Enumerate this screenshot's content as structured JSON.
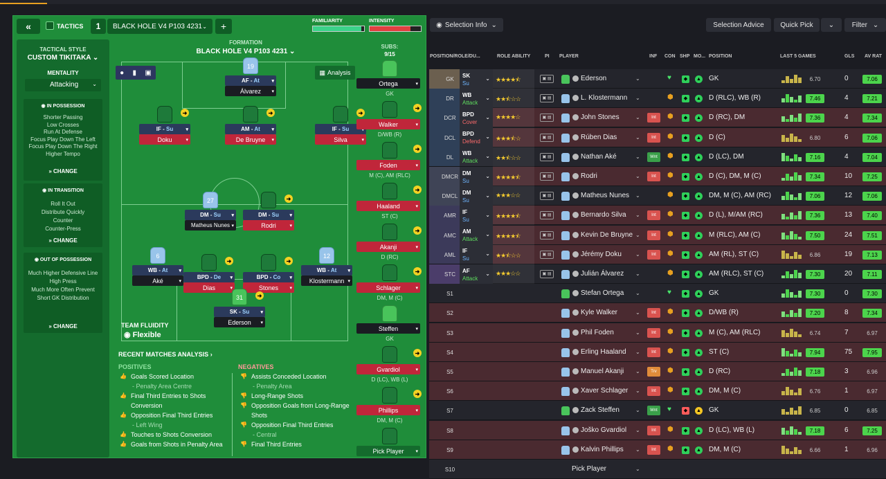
{
  "header": {
    "back_label": "«",
    "tactics_label": "TACTICS",
    "slot": "1",
    "tactic_name": "BLACK HOLE  V4 P103 4231",
    "add_label": "+",
    "familiarity_label": "FAMILIARITY",
    "intensity_label": "INTENSITY",
    "familiarity_level": 0.95,
    "intensity_level": 0.8
  },
  "style_panel": {
    "title": "TACTICAL STYLE",
    "name": "CUSTOM TIKITAKA",
    "mentality_label": "MENTALITY",
    "mentality_value": "Attacking",
    "possession": {
      "title": "IN POSSESSION",
      "items": [
        "Shorter Passing",
        "Low Crosses",
        "Run At Defense",
        "Focus Play Down The Left",
        "Focus Play Down The Right",
        "Higher Tempo"
      ],
      "change": "CHANGE"
    },
    "transition": {
      "title": "IN TRANSITION",
      "items": [
        "Roll It Out",
        "Distribute Quickly",
        "Counter",
        "Counter-Press"
      ],
      "change": "CHANGE"
    },
    "oop": {
      "title": "OUT OF POSSESSION",
      "items": [
        "Much Higher Defensive Line",
        "High Press",
        "Much More Often Prevent Short GK Distribution"
      ],
      "change": "CHANGE"
    },
    "fluidity_label": "TEAM FLUIDITY",
    "fluidity_value": "Flexible"
  },
  "pitch": {
    "formation_label": "FORMATION",
    "formation_name": "BLACK HOLE  V4 P103 4231",
    "analysis_label": "Analysis",
    "players": [
      {
        "role": "AF",
        "duty": "At",
        "name": "Álvarez",
        "num": "19",
        "shirt": "sky"
      },
      {
        "role": "IF",
        "duty": "Su",
        "name": "Doku",
        "shirt": "green"
      },
      {
        "role": "AM",
        "duty": "At",
        "name": "De Bruyne",
        "shirt": "green"
      },
      {
        "role": "IF",
        "duty": "Su",
        "name": "Silva",
        "shirt": "green"
      },
      {
        "role": "DM",
        "duty": "Su",
        "name": "Matheus Nunes",
        "num": "27",
        "shirt": "sky"
      },
      {
        "role": "DM",
        "duty": "Su",
        "name": "Rodri",
        "shirt": "green"
      },
      {
        "role": "WB",
        "duty": "At",
        "name": "Aké",
        "num": "6",
        "shirt": "sky"
      },
      {
        "role": "BPD",
        "duty": "De",
        "name": "Dias",
        "shirt": "green"
      },
      {
        "role": "BPD",
        "duty": "Co",
        "name": "Stones",
        "shirt": "green"
      },
      {
        "role": "WB",
        "duty": "At",
        "name": "Klostermann",
        "num": "12",
        "shirt": "sky"
      },
      {
        "role": "SK",
        "duty": "Su",
        "name": "Ederson",
        "num": "31",
        "shirt": "gk"
      }
    ]
  },
  "subs": {
    "label": "SUBS:",
    "count": "9/15",
    "items": [
      {
        "name": "Ortega",
        "pos": "GK"
      },
      {
        "name": "Walker",
        "pos": "D/WB (R)"
      },
      {
        "name": "Foden",
        "pos": "M (C), AM (RLC)"
      },
      {
        "name": "Haaland",
        "pos": "ST (C)"
      },
      {
        "name": "Akanji",
        "pos": "D (RC)"
      },
      {
        "name": "Schlager",
        "pos": "DM, M (C)"
      },
      {
        "name": "Steffen",
        "pos": "GK"
      },
      {
        "name": "Gvardiol",
        "pos": "D (LC), WB (L)"
      },
      {
        "name": "Phillips",
        "pos": "DM, M (C)"
      },
      {
        "name": "Pick Player",
        "pos": ""
      }
    ]
  },
  "analysis": {
    "title": "RECENT MATCHES ANALYSIS",
    "positives_label": "POSITIVES",
    "negatives_label": "NEGATIVES",
    "positives": [
      "Goals Scored Location",
      "- Penalty Area Centre",
      "Final Third Entries to Shots Conversion",
      "Opposition Final Third Entries",
      "- Left Wing",
      "Touches to Shots Conversion",
      "Goals from Shots in Penalty Area"
    ],
    "negatives": [
      "Assists Conceded Location",
      "- Penalty Area",
      "Long-Range Shots",
      "Opposition Goals from Long-Range Shots",
      "Opposition Final Third Entries",
      "- Central",
      "Final Third Entries"
    ]
  },
  "toolbar": {
    "selection_info": "Selection Info",
    "selection_advice": "Selection Advice",
    "quick_pick": "Quick Pick",
    "filter": "Filter"
  },
  "columns": [
    "POSITION/ROLE/DU...",
    "ROLE ABILITY",
    "PI",
    "PLAYER",
    "INF",
    "CON",
    "SHP",
    "MO...",
    "POSITION",
    "LAST 5 GAMES",
    "GLS",
    "AV RAT"
  ],
  "rows": [
    {
      "slot": "GK",
      "role": "SK",
      "duty": "Su",
      "stars": 4.5,
      "player": "Ederson",
      "inf": "",
      "pos": "GK",
      "rating": "6.70",
      "gls": "0",
      "av": "7.06"
    },
    {
      "slot": "DR",
      "role": "WB",
      "duty": "Attack",
      "stars": 2.5,
      "player": "L. Klostermann",
      "inf": "",
      "pos": "D (RLC), WB (R)",
      "rating": "7.46",
      "gls": "4",
      "av": "7.21"
    },
    {
      "slot": "DCR",
      "role": "BPD",
      "duty": "Cover",
      "stars": 4,
      "player": "John Stones",
      "inf": "Int",
      "pos": "D (RC), DM",
      "rating": "7.36",
      "gls": "4",
      "av": "7.34"
    },
    {
      "slot": "DCL",
      "role": "BPD",
      "duty": "Defend",
      "stars": 3.5,
      "player": "Rúben Dias",
      "inf": "Int",
      "pos": "D (C)",
      "rating": "6.80",
      "gls": "6",
      "av": "7.06"
    },
    {
      "slot": "DL",
      "role": "WB",
      "duty": "Attack",
      "stars": 2.5,
      "player": "Nathan Aké",
      "inf": "Wnt",
      "pos": "D (LC), DM",
      "rating": "7.16",
      "gls": "4",
      "av": "7.04"
    },
    {
      "slot": "DMCR",
      "role": "DM",
      "duty": "Su",
      "stars": 4.5,
      "player": "Rodri",
      "inf": "Int",
      "pos": "D (C), DM, M (C)",
      "rating": "7.34",
      "gls": "10",
      "av": "7.25"
    },
    {
      "slot": "DMCL",
      "role": "DM",
      "duty": "Su",
      "stars": 3,
      "player": "Matheus Nunes",
      "inf": "",
      "pos": "DM, M (C), AM (RC)",
      "rating": "7.06",
      "gls": "12",
      "av": "7.06"
    },
    {
      "slot": "AMR",
      "role": "IF",
      "duty": "Su",
      "stars": 4.5,
      "player": "Bernardo Silva",
      "inf": "Int",
      "pos": "D (L), M/AM (RC)",
      "rating": "7.36",
      "gls": "13",
      "av": "7.40"
    },
    {
      "slot": "AMC",
      "role": "AM",
      "duty": "Attack",
      "stars": 4.5,
      "player": "Kevin De Bruyne",
      "inf": "Int",
      "pos": "M (RLC), AM (C)",
      "rating": "7.50",
      "gls": "24",
      "av": "7.51"
    },
    {
      "slot": "AML",
      "role": "IF",
      "duty": "Su",
      "stars": 2.5,
      "player": "Jérémy Doku",
      "inf": "Int",
      "pos": "AM (RL), ST (C)",
      "rating": "6.86",
      "gls": "19",
      "av": "7.13"
    },
    {
      "slot": "STC",
      "role": "AF",
      "duty": "Attack",
      "stars": 3,
      "player": "Julián Álvarez",
      "inf": "",
      "pos": "AM (RLC), ST (C)",
      "rating": "7.30",
      "gls": "20",
      "av": "7.11"
    },
    {
      "slot": "S1",
      "role": "",
      "duty": "",
      "stars": 0,
      "player": "Stefan Ortega",
      "inf": "",
      "pos": "GK",
      "rating": "7.30",
      "gls": "0",
      "av": "7.30"
    },
    {
      "slot": "S2",
      "role": "",
      "duty": "",
      "stars": 0,
      "player": "Kyle Walker",
      "inf": "Int",
      "pos": "D/WB (R)",
      "rating": "7.20",
      "gls": "8",
      "av": "7.34"
    },
    {
      "slot": "S3",
      "role": "",
      "duty": "",
      "stars": 0,
      "player": "Phil Foden",
      "inf": "Int",
      "pos": "M (C), AM (RLC)",
      "rating": "6.74",
      "gls": "7",
      "av": "6.97"
    },
    {
      "slot": "S4",
      "role": "",
      "duty": "",
      "stars": 0,
      "player": "Erling Haaland",
      "inf": "Int",
      "pos": "ST (C)",
      "rating": "7.94",
      "gls": "75",
      "av": "7.95"
    },
    {
      "slot": "S5",
      "role": "",
      "duty": "",
      "stars": 0,
      "player": "Manuel Akanji",
      "inf": "Trv",
      "pos": "D (RC)",
      "rating": "7.18",
      "gls": "3",
      "av": "6.96"
    },
    {
      "slot": "S6",
      "role": "",
      "duty": "",
      "stars": 0,
      "player": "Xaver Schlager",
      "inf": "Int",
      "pos": "DM, M (C)",
      "rating": "6.76",
      "gls": "1",
      "av": "6.97"
    },
    {
      "slot": "S7",
      "role": "",
      "duty": "",
      "stars": 0,
      "player": "Zack Steffen",
      "inf": "Wnt",
      "pos": "GK",
      "rating": "6.85",
      "gls": "0",
      "av": "6.85"
    },
    {
      "slot": "S8",
      "role": "",
      "duty": "",
      "stars": 0,
      "player": "Joško Gvardiol",
      "inf": "Int",
      "pos": "D (LC), WB (L)",
      "rating": "7.18",
      "gls": "6",
      "av": "7.25"
    },
    {
      "slot": "S9",
      "role": "",
      "duty": "",
      "stars": 0,
      "player": "Kalvin Phillips",
      "inf": "Int",
      "pos": "DM, M (C)",
      "rating": "6.66",
      "gls": "1",
      "av": "6.96"
    },
    {
      "slot": "S10",
      "role": "",
      "duty": "",
      "stars": 0,
      "player": "Pick Player",
      "inf": "",
      "pos": "",
      "rating": "",
      "gls": "",
      "av": ""
    }
  ],
  "colors": {
    "panel_green": "#1f8d3a",
    "pitch_green": "#1f8d3a",
    "rating_green": "#4cd44c",
    "rating_yellow": "#e6e233",
    "red_row": "#4a2a30"
  }
}
